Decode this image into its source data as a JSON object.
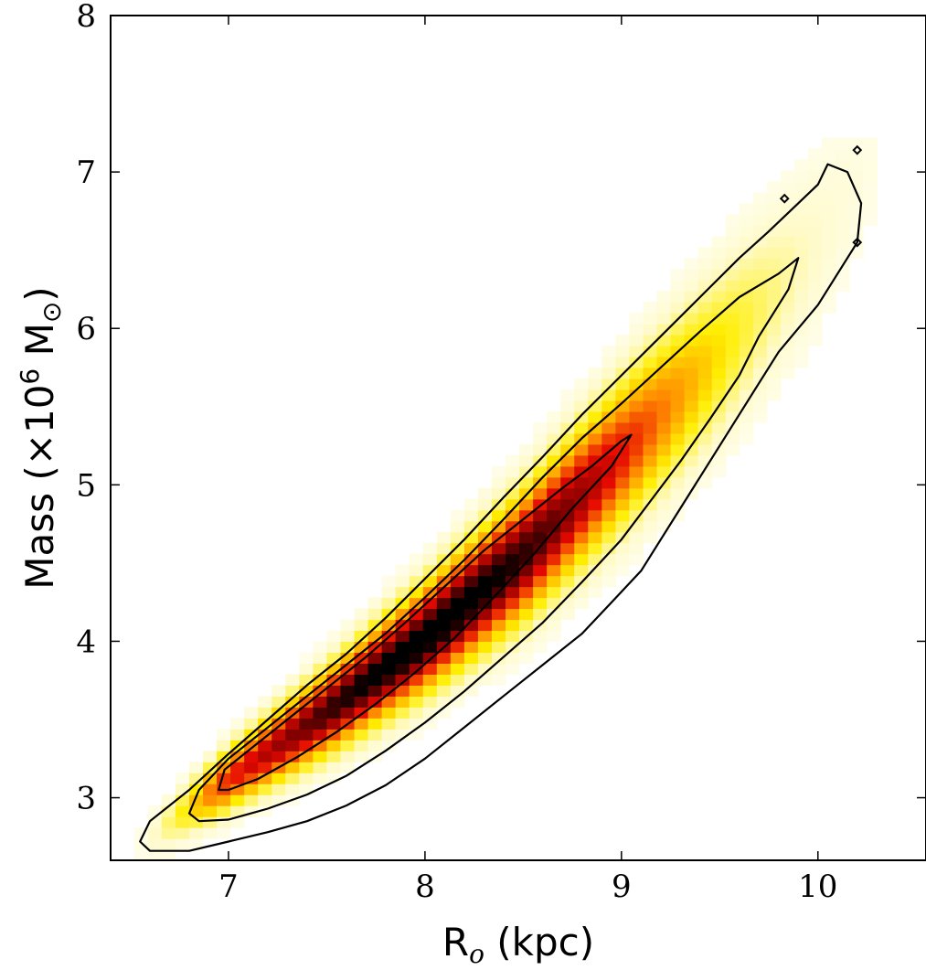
{
  "chart_data": {
    "type": "heatmap",
    "title": "",
    "xlabel": {
      "main": "R",
      "sub": "o",
      "rest": " (kpc)"
    },
    "ylabel": {
      "pre": "Mass (×10",
      "sup": "6",
      "post": " M",
      "sun": "⊙",
      "close": ")"
    },
    "xlim": [
      6.4,
      10.55
    ],
    "ylim": [
      2.6,
      8.0
    ],
    "xticks": [
      7,
      8,
      9,
      10
    ],
    "yticks": [
      3,
      4,
      5,
      6,
      7,
      8
    ],
    "colormap": "hot_r",
    "colors": {
      "peak": "#000000",
      "high": "#cc0000",
      "mid": "#ff8800",
      "low": "#ffee00",
      "faint": "#fffff0"
    },
    "ridge": {
      "x": [
        6.6,
        7.0,
        7.5,
        8.0,
        8.5,
        9.0,
        9.5,
        10.0,
        10.2
      ],
      "y": [
        2.75,
        3.12,
        3.55,
        4.02,
        4.55,
        5.2,
        5.85,
        6.55,
        6.9
      ]
    },
    "peak": {
      "x": 7.85,
      "y": 3.95
    },
    "contours": [
      {
        "level": "inner",
        "x": [
          6.95,
          6.98,
          7.1,
          7.3,
          7.5,
          7.7,
          7.9,
          8.1,
          8.3,
          8.5,
          8.7,
          8.85,
          9.0,
          9.05,
          8.95,
          8.75,
          8.55,
          8.35,
          8.15,
          7.95,
          7.75,
          7.55,
          7.35,
          7.15,
          7.0,
          6.95
        ],
        "y": [
          3.05,
          3.18,
          3.3,
          3.5,
          3.7,
          3.9,
          4.12,
          4.35,
          4.58,
          4.78,
          4.98,
          5.12,
          5.28,
          5.32,
          5.12,
          4.85,
          4.55,
          4.28,
          4.02,
          3.8,
          3.6,
          3.42,
          3.26,
          3.12,
          3.05,
          3.05
        ]
      },
      {
        "level": "middle",
        "x": [
          6.8,
          6.85,
          7.0,
          7.2,
          7.4,
          7.6,
          7.8,
          8.0,
          8.2,
          8.4,
          8.6,
          8.8,
          9.0,
          9.2,
          9.4,
          9.6,
          9.8,
          9.9,
          9.85,
          9.7,
          9.6,
          9.45,
          9.3,
          9.15,
          9.0,
          8.8,
          8.6,
          8.4,
          8.2,
          8.0,
          7.8,
          7.6,
          7.4,
          7.2,
          7.0,
          6.85,
          6.8
        ],
        "y": [
          2.9,
          3.05,
          3.25,
          3.45,
          3.65,
          3.85,
          4.05,
          4.28,
          4.52,
          4.78,
          5.05,
          5.3,
          5.52,
          5.75,
          5.98,
          6.2,
          6.35,
          6.45,
          6.25,
          5.95,
          5.7,
          5.42,
          5.15,
          4.9,
          4.65,
          4.38,
          4.12,
          3.9,
          3.68,
          3.48,
          3.3,
          3.14,
          3.02,
          2.93,
          2.86,
          2.85,
          2.9
        ]
      },
      {
        "level": "outer",
        "x": [
          6.55,
          6.6,
          6.8,
          7.0,
          7.2,
          7.4,
          7.6,
          7.8,
          8.0,
          8.2,
          8.4,
          8.6,
          8.8,
          9.0,
          9.2,
          9.4,
          9.6,
          9.75,
          9.9,
          10.0,
          10.05,
          10.15,
          10.22,
          10.2,
          10.1,
          10.0,
          9.9,
          9.8,
          9.7,
          9.6,
          9.5,
          9.4,
          9.3,
          9.2,
          9.1,
          8.95,
          8.8,
          8.6,
          8.4,
          8.2,
          8.0,
          7.8,
          7.6,
          7.4,
          7.2,
          7.0,
          6.8,
          6.6,
          6.55
        ],
        "y": [
          2.72,
          2.85,
          3.05,
          3.28,
          3.5,
          3.72,
          3.92,
          4.15,
          4.4,
          4.65,
          4.92,
          5.18,
          5.45,
          5.7,
          5.95,
          6.2,
          6.45,
          6.62,
          6.8,
          6.92,
          7.05,
          7.0,
          6.8,
          6.55,
          6.35,
          6.15,
          6.0,
          5.85,
          5.65,
          5.45,
          5.25,
          5.05,
          4.85,
          4.65,
          4.45,
          4.25,
          4.05,
          3.85,
          3.65,
          3.45,
          3.25,
          3.08,
          2.95,
          2.85,
          2.78,
          2.72,
          2.66,
          2.66,
          2.72
        ]
      }
    ],
    "islands": [
      {
        "x": 9.83,
        "y": 6.83
      },
      {
        "x": 10.2,
        "y": 7.14
      },
      {
        "x": 10.2,
        "y": 6.55
      }
    ],
    "grid": false,
    "legend": "none"
  }
}
